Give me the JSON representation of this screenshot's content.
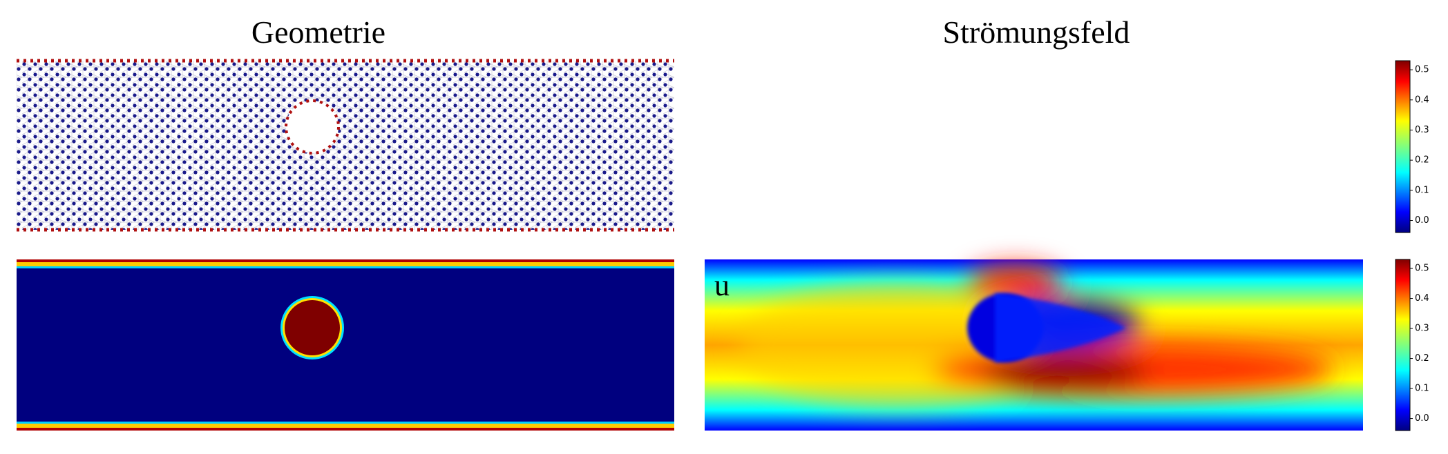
{
  "titles": {
    "geometry": "Geometrie",
    "flow": "Strömungsfeld"
  },
  "field_label": "u",
  "colorbars": [
    {
      "lim": [
        -0.04,
        0.53
      ],
      "ticks": [
        {
          "value": 0,
          "label": "0.0"
        },
        0.1,
        0.2,
        0.3,
        0.4,
        0.5
      ]
    },
    {
      "lim": [
        -0.04,
        0.53
      ],
      "ticks": [
        {
          "value": 0,
          "label": "0.0"
        },
        0.1,
        0.2,
        0.3,
        0.4,
        0.5
      ]
    }
  ]
}
